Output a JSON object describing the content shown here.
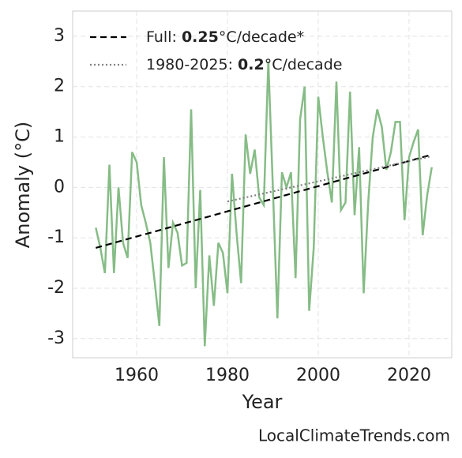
{
  "chart_data": {
    "type": "line",
    "xlabel": "Year",
    "ylabel": "Anomaly (°C)",
    "footer": "LocalClimateTrends.com",
    "xlim": [
      1945.9,
      2029.4
    ],
    "ylim": [
      -3.38,
      3.5
    ],
    "xticks": [
      1960,
      1980,
      2000,
      2020
    ],
    "yticks": [
      -3,
      -2,
      -1,
      0,
      1,
      2,
      3
    ],
    "grid": true,
    "legend": "upper left",
    "series": [
      {
        "color": "#86bc86",
        "style": "solid",
        "x": [
          1951,
          1952,
          1953,
          1954,
          1955,
          1956,
          1957,
          1958,
          1959,
          1960,
          1961,
          1962,
          1963,
          1964,
          1965,
          1966,
          1967,
          1968,
          1969,
          1970,
          1971,
          1972,
          1973,
          1974,
          1975,
          1976,
          1977,
          1978,
          1979,
          1980,
          1981,
          1982,
          1983,
          1984,
          1985,
          1986,
          1987,
          1988,
          1989,
          1990,
          1991,
          1992,
          1993,
          1994,
          1995,
          1996,
          1997,
          1998,
          1999,
          2000,
          2001,
          2002,
          2003,
          2004,
          2005,
          2006,
          2007,
          2008,
          2009,
          2010,
          2011,
          2012,
          2013,
          2014,
          2015,
          2016,
          2017,
          2018,
          2019,
          2020,
          2021,
          2022,
          2023,
          2024,
          2025
        ],
        "values": [
          -0.8,
          -1.2,
          -1.7,
          0.45,
          -1.7,
          0.0,
          -1.1,
          -1.4,
          0.7,
          0.5,
          -0.35,
          -0.7,
          -1.1,
          -1.9,
          -2.75,
          0.6,
          -1.6,
          -0.7,
          -0.9,
          -1.55,
          -1.5,
          1.55,
          -2.0,
          -0.05,
          -3.15,
          -1.35,
          -2.35,
          -1.1,
          -1.3,
          -2.1,
          0.27,
          -0.9,
          -1.9,
          1.05,
          0.27,
          0.75,
          -0.2,
          -0.35,
          2.5,
          0.0,
          -2.6,
          0.3,
          0.0,
          0.3,
          -1.8,
          1.35,
          2.0,
          -2.45,
          -1.2,
          1.8,
          1.0,
          0.3,
          -0.3,
          2.1,
          -0.45,
          -0.3,
          1.9,
          -0.55,
          0.8,
          -2.1,
          -0.3,
          1.0,
          1.55,
          1.2,
          0.35,
          0.7,
          1.3,
          1.3,
          -0.65,
          0.6,
          0.9,
          1.15,
          -0.95,
          -0.15,
          0.4
        ]
      },
      {
        "name": "Full: 0.25°C/decade*",
        "color": "#000000",
        "style": "dashed",
        "x": [
          1951,
          2025
        ],
        "values": [
          -1.2,
          0.65
        ]
      },
      {
        "name": "1980-2025: 0.2°C/decade",
        "color": "#808080",
        "style": "dotted",
        "x": [
          1980,
          2025
        ],
        "values": [
          -0.28,
          0.62
        ]
      }
    ]
  }
}
